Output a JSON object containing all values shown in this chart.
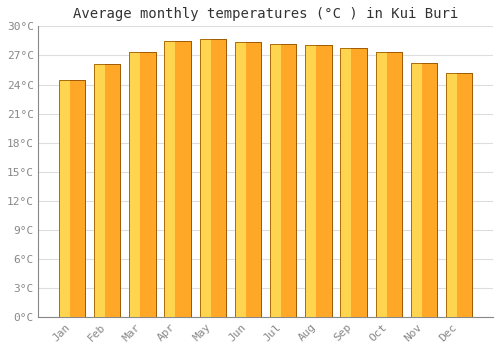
{
  "title": "Average monthly temperatures (°C ) in Kui Buri",
  "months": [
    "Jan",
    "Feb",
    "Mar",
    "Apr",
    "May",
    "Jun",
    "Jul",
    "Aug",
    "Sep",
    "Oct",
    "Nov",
    "Dec"
  ],
  "temperatures": [
    24.5,
    26.1,
    27.4,
    28.5,
    28.7,
    28.4,
    28.2,
    28.1,
    27.8,
    27.4,
    26.2,
    25.2
  ],
  "bar_color_main": "#FFA726",
  "bar_color_light": "#FFD54F",
  "bar_color_dark": "#F57C00",
  "bar_edge_color": "#9E5A00",
  "ylim": [
    0,
    30
  ],
  "yticks": [
    0,
    3,
    6,
    9,
    12,
    15,
    18,
    21,
    24,
    27,
    30
  ],
  "ytick_labels": [
    "0°C",
    "3°C",
    "6°C",
    "9°C",
    "12°C",
    "15°C",
    "18°C",
    "21°C",
    "24°C",
    "27°C",
    "30°C"
  ],
  "background_color": "#ffffff",
  "plot_bg_color": "#ffffff",
  "grid_color": "#dddddd",
  "title_fontsize": 10,
  "tick_fontsize": 8,
  "tick_color": "#888888"
}
